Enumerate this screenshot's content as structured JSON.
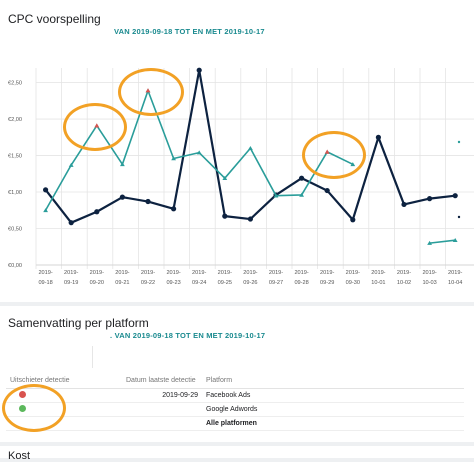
{
  "chart_section": {
    "title": "CPC voorspelling",
    "subtitle": "VAN 2019-09-18 TOT EN MET 2019-10-17"
  },
  "summary_section": {
    "title": "Samenvatting per platform",
    "subtitle": ". VAN 2019-09-18 TOT EN MET 2019-10-17",
    "headers": [
      "Uitschieter detectie",
      "Datum laatste detectie",
      "Platform"
    ],
    "rows": [
      {
        "status_color": "#d9534f",
        "date": "2019-09-29",
        "platform": "Facebook Ads"
      },
      {
        "status_color": "#5cb85c",
        "date": "",
        "platform": "Google Adwords"
      },
      {
        "status_color": "",
        "date": "",
        "platform": "Alle platformen"
      }
    ]
  },
  "next_section": {
    "title": "Kost"
  },
  "colors": {
    "navy": "#0d2240",
    "teal": "#2a9d9a",
    "orange": "#f2a125",
    "alert_red": "#d9534f",
    "ok_green": "#5cb85c"
  },
  "chart_data": {
    "type": "line",
    "title": "CPC voorspelling",
    "subtitle": "VAN 2019-09-18 TOT EN MET 2019-10-17",
    "x": [
      "2019-09-18",
      "2019-09-19",
      "2019-09-20",
      "2019-09-21",
      "2019-09-22",
      "2019-09-23",
      "2019-09-24",
      "2019-09-25",
      "2019-09-26",
      "2019-09-27",
      "2019-09-28",
      "2019-09-29",
      "2019-09-30",
      "2019-10-01",
      "2019-10-02",
      "2019-10-03",
      "2019-10-04"
    ],
    "y_tick_labels": [
      "€0,00",
      "€0,50",
      "€1,00",
      "€1,50",
      "€2,00",
      "€2,50"
    ],
    "ylim": [
      0,
      2.7
    ],
    "series": [
      {
        "color": "#0d2240",
        "values": [
          1.03,
          0.58,
          0.73,
          0.93,
          0.87,
          0.77,
          2.67,
          0.67,
          0.63,
          0.96,
          1.19,
          1.02,
          0.62,
          1.75,
          0.83,
          0.91,
          0.95
        ]
      },
      {
        "color": "#2a9d9a",
        "values": [
          0.75,
          1.37,
          1.91,
          1.38,
          2.39,
          1.46,
          1.54,
          1.19,
          1.6,
          0.95,
          0.96,
          1.55,
          1.38,
          null,
          null,
          null,
          null
        ]
      },
      {
        "color": "#2a9d9a",
        "values": [
          null,
          null,
          null,
          null,
          null,
          null,
          null,
          null,
          null,
          null,
          null,
          null,
          null,
          null,
          null,
          0.3,
          0.34
        ]
      }
    ],
    "anomalies": [
      {
        "x": "2019-09-20",
        "value": 1.91
      },
      {
        "x": "2019-09-22",
        "value": 2.39
      },
      {
        "x": "2019-09-29",
        "value": 1.55
      }
    ],
    "grid": true,
    "legend": "none"
  }
}
